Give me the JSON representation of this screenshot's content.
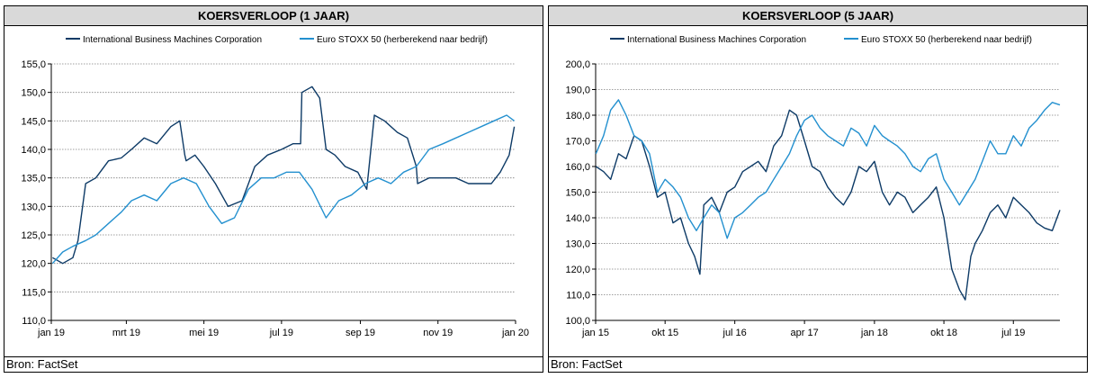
{
  "colors": {
    "ibm": "#0d3a66",
    "stoxx": "#2390cf",
    "grid": "#808080"
  },
  "source_label": "Bron: FactSet",
  "chart_data": [
    {
      "id": "1y",
      "type": "line",
      "title": "KOERSVERLOOP (1 JAAR)",
      "legend_position": "top",
      "grid": true,
      "ylim": [
        110,
        155
      ],
      "yticks": [
        110,
        115,
        120,
        125,
        130,
        135,
        140,
        145,
        150,
        155
      ],
      "ytick_labels": [
        "110,0",
        "115,0",
        "120,0",
        "125,0",
        "130,0",
        "135,0",
        "140,0",
        "145,0",
        "150,0",
        "155,0"
      ],
      "xlim": [
        "2019-01-01",
        "2020-01-01"
      ],
      "xticks": [
        "2019-01-01",
        "2019-03-01",
        "2019-05-01",
        "2019-07-01",
        "2019-09-01",
        "2019-11-01",
        "2020-01-01"
      ],
      "xtick_labels": [
        "jan 19",
        "mrt 19",
        "mei 19",
        "jul 19",
        "sep 19",
        "nov 19",
        "jan 20"
      ],
      "series": [
        {
          "name": "International Business Machines Corporation",
          "x": [
            "2019-01-02",
            "2019-01-10",
            "2019-01-18",
            "2019-01-22",
            "2019-01-28",
            "2019-02-05",
            "2019-02-15",
            "2019-02-25",
            "2019-03-05",
            "2019-03-15",
            "2019-03-25",
            "2019-04-05",
            "2019-04-12",
            "2019-04-16",
            "2019-04-17",
            "2019-04-24",
            "2019-05-01",
            "2019-05-10",
            "2019-05-20",
            "2019-05-31",
            "2019-06-10",
            "2019-06-20",
            "2019-07-01",
            "2019-07-10",
            "2019-07-16",
            "2019-07-17",
            "2019-07-25",
            "2019-07-31",
            "2019-08-05",
            "2019-08-12",
            "2019-08-20",
            "2019-08-30",
            "2019-09-06",
            "2019-09-12",
            "2019-09-20",
            "2019-09-30",
            "2019-10-08",
            "2019-10-15",
            "2019-10-16",
            "2019-10-25",
            "2019-11-05",
            "2019-11-15",
            "2019-11-25",
            "2019-12-05",
            "2019-12-13",
            "2019-12-20",
            "2019-12-27",
            "2019-12-31"
          ],
          "y": [
            121,
            120,
            121,
            124,
            134,
            135,
            138,
            138.5,
            140,
            142,
            141,
            144,
            145,
            139,
            138,
            139,
            137,
            134,
            130,
            131,
            137,
            139,
            140,
            141,
            141,
            150,
            151,
            149,
            140,
            139,
            137,
            136,
            133,
            146,
            145,
            143,
            142,
            137,
            134,
            135,
            135,
            135,
            134,
            134,
            134,
            136,
            139,
            144
          ]
        },
        {
          "name": "Euro STOXX 50 (herberekend naar bedrijf)",
          "x": [
            "2019-01-02",
            "2019-01-10",
            "2019-01-18",
            "2019-01-28",
            "2019-02-05",
            "2019-02-15",
            "2019-02-25",
            "2019-03-05",
            "2019-03-15",
            "2019-03-25",
            "2019-04-05",
            "2019-04-15",
            "2019-04-25",
            "2019-05-05",
            "2019-05-15",
            "2019-05-25",
            "2019-06-05",
            "2019-06-15",
            "2019-06-25",
            "2019-07-05",
            "2019-07-15",
            "2019-07-25",
            "2019-08-05",
            "2019-08-15",
            "2019-08-25",
            "2019-09-05",
            "2019-09-15",
            "2019-09-25",
            "2019-10-05",
            "2019-10-15",
            "2019-10-25",
            "2019-11-05",
            "2019-11-15",
            "2019-11-25",
            "2019-12-05",
            "2019-12-15",
            "2019-12-25",
            "2019-12-31"
          ],
          "y": [
            120,
            122,
            123,
            124,
            125,
            127,
            129,
            131,
            132,
            131,
            134,
            135,
            134,
            130,
            127,
            128,
            133,
            135,
            135,
            136,
            136,
            133,
            128,
            131,
            132,
            134,
            135,
            134,
            136,
            137,
            140,
            141,
            142,
            143,
            144,
            145,
            146,
            145
          ]
        }
      ]
    },
    {
      "id": "5y",
      "type": "line",
      "title": "KOERSVERLOOP (5 JAAR)",
      "legend_position": "top",
      "grid": true,
      "ylim": [
        100,
        200
      ],
      "yticks": [
        100,
        110,
        120,
        130,
        140,
        150,
        160,
        170,
        180,
        190,
        200
      ],
      "ytick_labels": [
        "100,0",
        "110,0",
        "120,0",
        "130,0",
        "140,0",
        "150,0",
        "160,0",
        "170,0",
        "180,0",
        "190,0",
        "200,0"
      ],
      "xlim": [
        "2015-01-01",
        "2019-12-31"
      ],
      "xticks": [
        "2015-01-01",
        "2015-10-01",
        "2016-07-01",
        "2017-04-01",
        "2018-01-01",
        "2018-10-01",
        "2019-07-01"
      ],
      "xtick_labels": [
        "jan 15",
        "okt 15",
        "jul 16",
        "apr 17",
        "jan 18",
        "okt 18",
        "jul 19"
      ],
      "series": [
        {
          "name": "International Business Machines Corporation",
          "x": [
            "2015-01-02",
            "2015-02-01",
            "2015-03-01",
            "2015-04-01",
            "2015-05-01",
            "2015-06-01",
            "2015-07-01",
            "2015-08-01",
            "2015-09-01",
            "2015-10-01",
            "2015-11-01",
            "2015-12-01",
            "2016-01-01",
            "2016-01-25",
            "2016-02-15",
            "2016-03-01",
            "2016-04-01",
            "2016-05-01",
            "2016-06-01",
            "2016-07-01",
            "2016-08-01",
            "2016-09-01",
            "2016-10-01",
            "2016-11-01",
            "2016-12-01",
            "2017-01-01",
            "2017-02-01",
            "2017-03-01",
            "2017-04-01",
            "2017-05-01",
            "2017-06-01",
            "2017-07-01",
            "2017-08-01",
            "2017-09-01",
            "2017-10-01",
            "2017-11-01",
            "2017-12-01",
            "2018-01-01",
            "2018-02-01",
            "2018-03-01",
            "2018-04-01",
            "2018-05-01",
            "2018-06-01",
            "2018-07-01",
            "2018-08-01",
            "2018-09-01",
            "2018-10-01",
            "2018-11-01",
            "2018-12-01",
            "2018-12-24",
            "2019-01-15",
            "2019-02-01",
            "2019-03-01",
            "2019-04-01",
            "2019-05-01",
            "2019-06-01",
            "2019-07-01",
            "2019-08-01",
            "2019-09-01",
            "2019-10-01",
            "2019-11-01",
            "2019-12-01",
            "2019-12-31"
          ],
          "y": [
            160,
            158,
            155,
            165,
            163,
            172,
            170,
            160,
            148,
            150,
            138,
            140,
            130,
            125,
            118,
            145,
            148,
            142,
            150,
            152,
            158,
            160,
            162,
            158,
            168,
            172,
            182,
            180,
            170,
            160,
            158,
            152,
            148,
            145,
            150,
            160,
            158,
            162,
            150,
            145,
            150,
            148,
            142,
            145,
            148,
            152,
            140,
            120,
            112,
            108,
            125,
            130,
            135,
            142,
            145,
            140,
            148,
            145,
            142,
            138,
            136,
            135,
            143
          ]
        },
        {
          "name": "Euro STOXX 50 (herberekend naar bedrijf)",
          "x": [
            "2015-01-02",
            "2015-02-01",
            "2015-03-01",
            "2015-04-01",
            "2015-05-01",
            "2015-06-01",
            "2015-07-01",
            "2015-08-01",
            "2015-09-01",
            "2015-10-01",
            "2015-11-01",
            "2015-12-01",
            "2016-01-01",
            "2016-02-01",
            "2016-03-01",
            "2016-04-01",
            "2016-05-01",
            "2016-06-01",
            "2016-07-01",
            "2016-08-01",
            "2016-09-01",
            "2016-10-01",
            "2016-11-01",
            "2016-12-01",
            "2017-01-01",
            "2017-02-01",
            "2017-03-01",
            "2017-04-01",
            "2017-05-01",
            "2017-06-01",
            "2017-07-01",
            "2017-08-01",
            "2017-09-01",
            "2017-10-01",
            "2017-11-01",
            "2017-12-01",
            "2018-01-01",
            "2018-02-01",
            "2018-03-01",
            "2018-04-01",
            "2018-05-01",
            "2018-06-01",
            "2018-07-01",
            "2018-08-01",
            "2018-09-01",
            "2018-10-01",
            "2018-11-01",
            "2018-12-01",
            "2019-01-01",
            "2019-02-01",
            "2019-03-01",
            "2019-04-01",
            "2019-05-01",
            "2019-06-01",
            "2019-07-01",
            "2019-08-01",
            "2019-09-01",
            "2019-10-01",
            "2019-11-01",
            "2019-12-01",
            "2019-12-31"
          ],
          "y": [
            165,
            172,
            182,
            186,
            180,
            172,
            170,
            165,
            150,
            155,
            152,
            148,
            140,
            135,
            140,
            145,
            142,
            132,
            140,
            142,
            145,
            148,
            150,
            155,
            160,
            165,
            172,
            178,
            180,
            175,
            172,
            170,
            168,
            175,
            173,
            168,
            176,
            172,
            170,
            168,
            165,
            160,
            158,
            163,
            165,
            155,
            150,
            145,
            150,
            155,
            162,
            170,
            165,
            165,
            172,
            168,
            175,
            178,
            182,
            185,
            184
          ]
        }
      ]
    }
  ]
}
